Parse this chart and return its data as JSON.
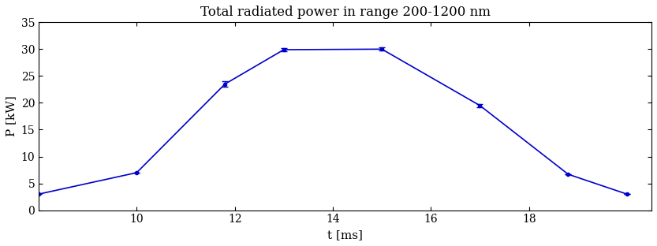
{
  "title": "Total radiated power in range 200-1200 nm",
  "xlabel": "t [ms]",
  "ylabel": "P [kW]",
  "x": [
    8.0,
    10.0,
    11.8,
    13.0,
    15.0,
    17.0,
    18.8,
    20.0
  ],
  "y": [
    3.0,
    7.0,
    23.5,
    29.9,
    30.0,
    19.5,
    6.7,
    3.0
  ],
  "yerr": [
    0.0,
    0.0,
    0.5,
    0.3,
    0.3,
    0.3,
    0.0,
    0.0
  ],
  "line_color": "#0000cc",
  "markersize": 3,
  "linewidth": 1.2,
  "xlim": [
    8,
    20.5
  ],
  "ylim": [
    0,
    35
  ],
  "xticks": [
    10,
    12,
    14,
    16,
    18
  ],
  "yticks": [
    0,
    5,
    10,
    15,
    20,
    25,
    30,
    35
  ],
  "bg_color": "#ffffff",
  "plot_bg_color": "#ffffff",
  "title_fontsize": 12,
  "label_fontsize": 11,
  "tick_fontsize": 10
}
